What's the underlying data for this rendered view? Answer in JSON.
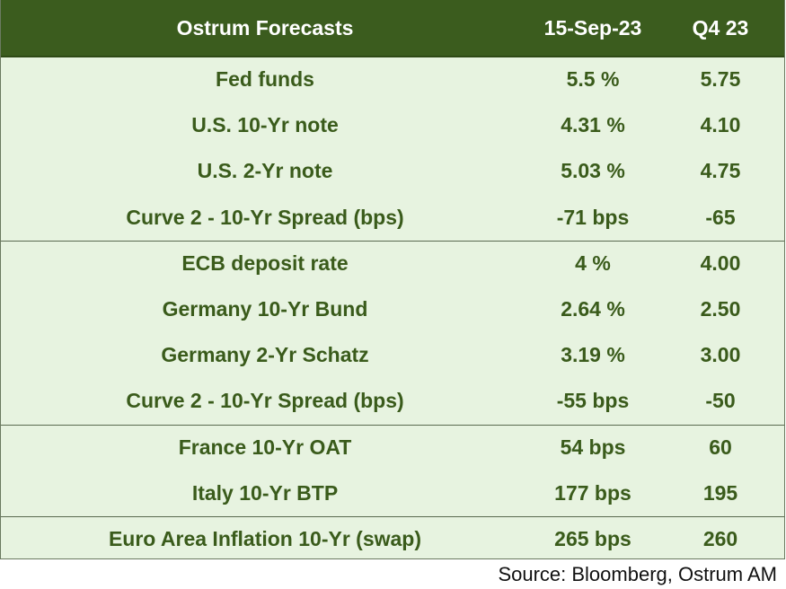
{
  "chart_data": {
    "type": "table",
    "columns": [
      "Ostrum Forecasts",
      "15-Sep-23",
      "Q4 23"
    ],
    "rows": [
      [
        "Fed funds",
        "5.5 %",
        "5.75"
      ],
      [
        "U.S.  10-Yr note",
        "4.31 %",
        "4.10"
      ],
      [
        "U.S. 2-Yr note",
        "5.03 %",
        "4.75"
      ],
      [
        "Curve 2 - 10-Yr Spread (bps)",
        "-71 bps",
        "-65"
      ],
      [
        "ECB deposit rate",
        "4 %",
        "4.00"
      ],
      [
        "Germany  10-Yr Bund",
        "2.64 %",
        "2.50"
      ],
      [
        "Germany  2-Yr Schatz",
        "3.19 %",
        "3.00"
      ],
      [
        "Curve 2 - 10-Yr Spread (bps)",
        "-55 bps",
        "-50"
      ],
      [
        "France 10-Yr OAT",
        "54 bps",
        "60"
      ],
      [
        "Italy 10-Yr BTP",
        "177 bps",
        "195"
      ],
      [
        "Euro Area Inflation 10-Yr (swap)",
        "265 bps",
        "260"
      ]
    ],
    "group_breaks_after_row": [
      3,
      7,
      9
    ],
    "source": "Source: Bloomberg, Ostrum AM"
  },
  "colors": {
    "header_bg": "#3b5c1e",
    "body_bg": "#e7f3e0",
    "text": "#3a5b1b"
  }
}
